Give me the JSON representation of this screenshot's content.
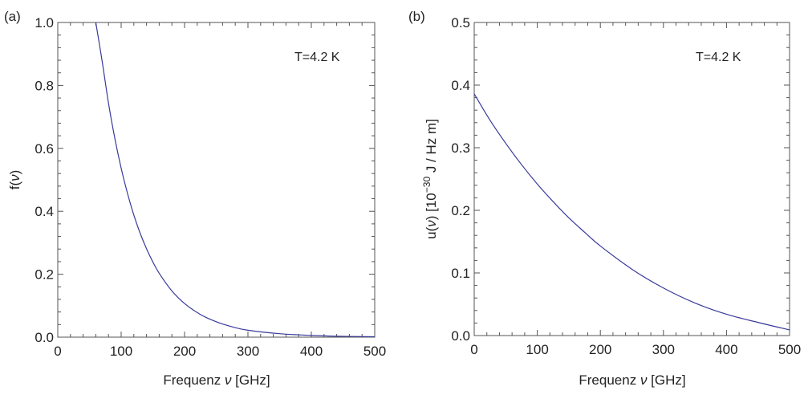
{
  "chart_data": [
    {
      "type": "line",
      "panel_label": "(a)",
      "xlabel_main": "Frequenz ",
      "xlabel_symbol": "ν",
      "xlabel_unit": " [GHz]",
      "ylabel_main": "f(",
      "ylabel_symbol": "ν",
      "ylabel_end": ")",
      "annotation": "T=4.2 K",
      "xlim": [
        0,
        500
      ],
      "ylim": [
        0,
        1.0
      ],
      "xticks": [
        0,
        100,
        200,
        300,
        400,
        500
      ],
      "xtick_labels": [
        "0",
        "100",
        "200",
        "300",
        "400",
        "500"
      ],
      "yticks": [
        0,
        0.2,
        0.4,
        0.6,
        0.8,
        1.0
      ],
      "ytick_labels": [
        "0.0",
        "0.2",
        "0.4",
        "0.6",
        "0.8",
        "1.0"
      ],
      "grid": false,
      "line_color": "#3a3a9a",
      "series": [
        {
          "x": [
            60,
            70,
            80,
            90,
            100,
            110,
            120,
            130,
            140,
            150,
            160,
            180,
            200,
            225,
            250,
            275,
            300,
            350,
            400,
            450,
            500
          ],
          "y": [
            1.0,
            0.877,
            0.744,
            0.632,
            0.537,
            0.457,
            0.388,
            0.33,
            0.281,
            0.239,
            0.203,
            0.147,
            0.107,
            0.072,
            0.049,
            0.033,
            0.022,
            0.011,
            0.0055,
            0.0027,
            0.0013
          ]
        }
      ]
    },
    {
      "type": "line",
      "panel_label": "(b)",
      "xlabel_main": "Frequenz ",
      "xlabel_symbol": "ν",
      "xlabel_unit": " [GHz]",
      "ylabel_main": "u(",
      "ylabel_symbol": "ν",
      "ylabel_mid": ") [10",
      "ylabel_exp": "−30",
      "ylabel_end": " J / Hz m]",
      "annotation": "T=4.2 K",
      "xlim": [
        0,
        500
      ],
      "ylim": [
        0,
        0.5
      ],
      "xticks": [
        0,
        100,
        200,
        300,
        400,
        500
      ],
      "xtick_labels": [
        "0",
        "100",
        "200",
        "300",
        "400",
        "500"
      ],
      "yticks": [
        0,
        0.1,
        0.2,
        0.3,
        0.4,
        0.5
      ],
      "ytick_labels": [
        "0.0",
        "0.1",
        "0.2",
        "0.3",
        "0.4",
        "0.5"
      ],
      "grid": false,
      "line_color": "#3a3a9a",
      "series": [
        {
          "x": [
            0,
            25,
            50,
            75,
            100,
            125,
            150,
            175,
            200,
            250,
            300,
            350,
            400,
            450,
            500
          ],
          "y": [
            0.386,
            0.344,
            0.307,
            0.273,
            0.242,
            0.214,
            0.188,
            0.165,
            0.143,
            0.106,
            0.076,
            0.052,
            0.034,
            0.021,
            0.009
          ]
        }
      ]
    }
  ]
}
